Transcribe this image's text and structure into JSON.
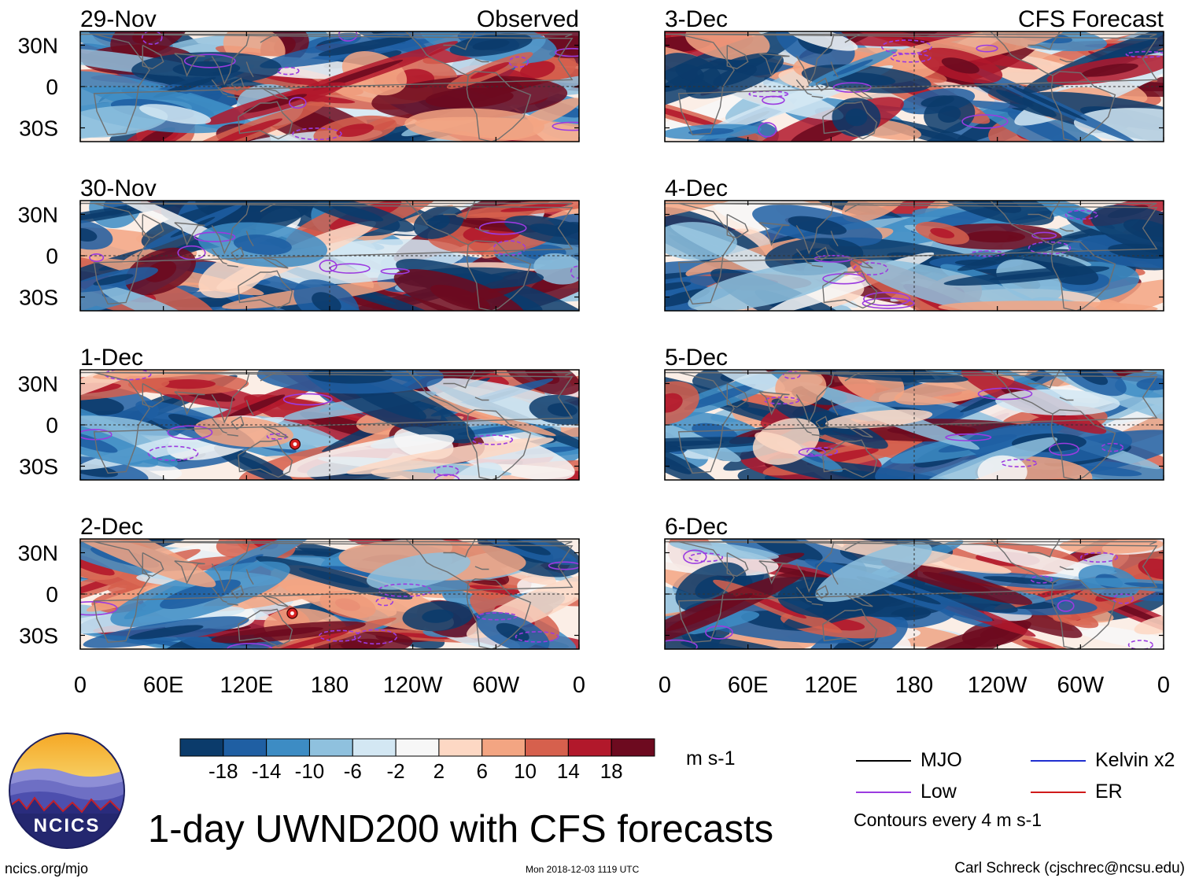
{
  "title": "1-day UWND200 with CFS forecasts",
  "site_url": "ncics.org/mjo",
  "timestamp": "Mon 2018-12-03 1119 UTC",
  "credit": "Carl Schreck (cjschrec@ncsu.edu)",
  "logo_text": "NCICS",
  "colorbar": {
    "units": "m s-1",
    "colors": [
      "#0b3b6b",
      "#1f5fa3",
      "#3d8cc4",
      "#8fc1de",
      "#d3e7f3",
      "#f7f7f7",
      "#fdd8c4",
      "#f3a582",
      "#d6604d",
      "#b2182b",
      "#6d0a1f"
    ],
    "tick_labels": [
      "-18",
      "-14",
      "-10",
      "-6",
      "-2",
      "2",
      "6",
      "10",
      "14",
      "18"
    ]
  },
  "legend": {
    "items": [
      {
        "name": "MJO",
        "color": "#000000"
      },
      {
        "name": "Kelvin x2",
        "color": "#1f2fd0"
      },
      {
        "name": "Low",
        "color": "#9b3be0"
      },
      {
        "name": "ER",
        "color": "#d01a1a"
      }
    ],
    "contours_note": "Contours every 4 m s-1"
  },
  "axis": {
    "lon_ticks": [
      "0",
      "60E",
      "120E",
      "180",
      "120W",
      "60W",
      "0"
    ],
    "lat_ticks": [
      "30N",
      "0",
      "30S"
    ]
  },
  "chart_data": {
    "type": "heatmap",
    "variable": "UWND200 (200-hPa zonal wind anomaly)",
    "units": "m s-1",
    "x_range_deg": [
      0,
      360
    ],
    "y_range_deg": [
      -40,
      40
    ],
    "contour_levels": [
      -18,
      -14,
      -10,
      -6,
      -2,
      2,
      6,
      10,
      14,
      18
    ],
    "panels": [
      {
        "date": "29-Nov",
        "tag": "Observed",
        "column": "left"
      },
      {
        "date": "30-Nov",
        "tag": "",
        "column": "left"
      },
      {
        "date": "1-Dec",
        "tag": "",
        "column": "left",
        "storm_marker": {
          "lon": 155,
          "lat": -14
        }
      },
      {
        "date": "2-Dec",
        "tag": "",
        "column": "left",
        "storm_marker": {
          "lon": 153,
          "lat": -14
        }
      },
      {
        "date": "3-Dec",
        "tag": "CFS Forecast",
        "column": "right"
      },
      {
        "date": "4-Dec",
        "tag": "",
        "column": "right"
      },
      {
        "date": "5-Dec",
        "tag": "",
        "column": "right"
      },
      {
        "date": "6-Dec",
        "tag": "",
        "column": "right"
      }
    ]
  }
}
